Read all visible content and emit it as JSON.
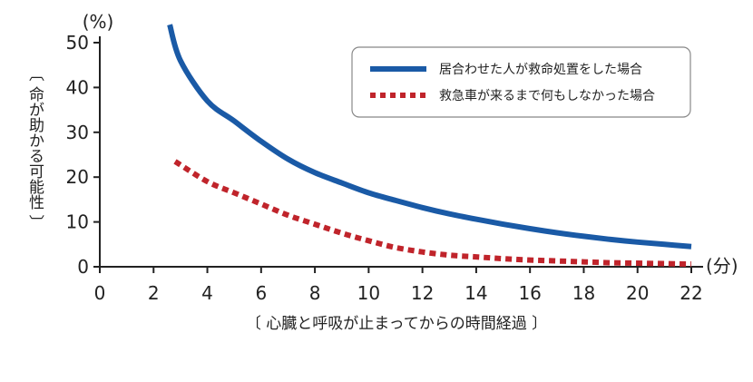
{
  "chart_data": {
    "type": "line",
    "title": "",
    "xlabel": "〔 心臓と呼吸が止まってからの時間経過 〕",
    "ylabel": "〔 命が助かる可能性 〕",
    "x_unit": "(分)",
    "y_unit": "(%)",
    "xlim": [
      0,
      22
    ],
    "ylim": [
      0,
      50
    ],
    "x_ticks": [
      "0",
      "2",
      "4",
      "6",
      "8",
      "10",
      "12",
      "14",
      "16",
      "18",
      "20",
      "22"
    ],
    "y_ticks": [
      "0",
      "10",
      "20",
      "30",
      "40",
      "50"
    ],
    "grid": false,
    "legend_position": "top-right",
    "series": [
      {
        "name": "居合わせた人が救命処置をした場合",
        "color": "#1a5aa6",
        "style": "solid",
        "x": [
          2.6,
          3,
          4,
          5,
          6,
          7,
          8,
          9,
          10,
          11,
          12,
          13,
          14,
          15,
          16,
          17,
          18,
          19,
          20,
          21,
          22
        ],
        "values": [
          54,
          46,
          37,
          32.5,
          28,
          24,
          21,
          18.7,
          16.5,
          14.8,
          13.2,
          11.8,
          10.6,
          9.5,
          8.5,
          7.6,
          6.8,
          6.1,
          5.5,
          5.0,
          4.5
        ]
      },
      {
        "name": "救急車が来るまで何もしなかった場合",
        "color": "#c0242b",
        "style": "dotted",
        "x": [
          2.8,
          4,
          5,
          6,
          7,
          8,
          9,
          10,
          11,
          12,
          13,
          14,
          15,
          16,
          17,
          18,
          19,
          20,
          21,
          22
        ],
        "values": [
          23.5,
          19,
          16.5,
          14,
          11.5,
          9.5,
          7.5,
          5.8,
          4.3,
          3.3,
          2.6,
          2.2,
          1.8,
          1.5,
          1.3,
          1.1,
          0.9,
          0.8,
          0.7,
          0.6
        ]
      }
    ]
  }
}
